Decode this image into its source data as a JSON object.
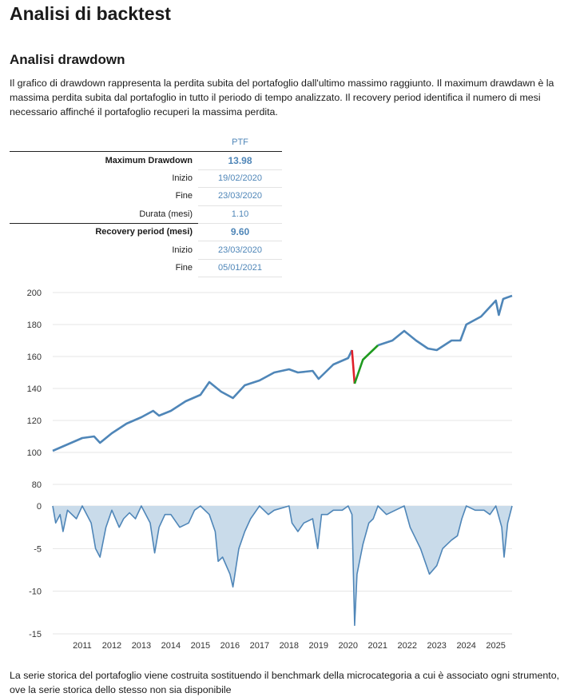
{
  "page_title": "Analisi di backtest",
  "section_title": "Analisi drawdown",
  "intro": "Il grafico di drawdown rappresenta la perdita subita del portafoglio dall'ultimo massimo raggiunto. Il maximum drawdawn è la massima perdita subita dal portafoglio in tutto il periodo di tempo analizzato. Il recovery period identifica il numero di mesi necessario affinché il portafoglio recuperi la massima perdita.",
  "table": {
    "column_header": "PTF",
    "rows": [
      {
        "label": "Maximum Drawdown",
        "value": "13.98"
      },
      {
        "label": "Inizio",
        "value": "19/02/2020"
      },
      {
        "label": "Fine",
        "value": "23/03/2020"
      },
      {
        "label": "Durata (mesi)",
        "value": "1.10"
      },
      {
        "label": "Recovery period (mesi)",
        "value": "9.60"
      },
      {
        "label": "Inizio",
        "value": "23/03/2020"
      },
      {
        "label": "Fine",
        "value": "05/01/2021"
      }
    ]
  },
  "colors": {
    "series": "#4f86b8",
    "drawdown_fill": "#c9dbea",
    "drawdown_phase": "#e0202a",
    "recovery_phase": "#1f9a1f",
    "grid": "#e6e6e6"
  },
  "chart_data": [
    {
      "type": "line",
      "xlim": [
        2010.0,
        2025.55
      ],
      "ylim": [
        80,
        200
      ],
      "yticks": [
        "80",
        "100",
        "120",
        "140",
        "160",
        "180",
        "200"
      ],
      "grid": true,
      "highlight_segments": [
        {
          "phase": "drawdown",
          "from": 2020.13,
          "to": 2020.22
        },
        {
          "phase": "recovery",
          "from": 2020.22,
          "to": 2021.01
        }
      ],
      "x": [
        2010.0,
        2010.5,
        2011.0,
        2011.4,
        2011.6,
        2012.0,
        2012.5,
        2013.0,
        2013.4,
        2013.6,
        2014.0,
        2014.5,
        2015.0,
        2015.3,
        2015.7,
        2016.1,
        2016.5,
        2017.0,
        2017.5,
        2018.0,
        2018.3,
        2018.8,
        2019.0,
        2019.5,
        2020.0,
        2020.13,
        2020.22,
        2020.5,
        2021.01,
        2021.5,
        2021.9,
        2022.3,
        2022.7,
        2023.0,
        2023.5,
        2023.8,
        2024.0,
        2024.5,
        2025.0,
        2025.1,
        2025.25,
        2025.55
      ],
      "y": [
        101,
        105,
        109,
        110,
        106,
        112,
        118,
        122,
        126,
        123,
        126,
        132,
        136,
        144,
        138,
        134,
        142,
        145,
        150,
        152,
        150,
        151,
        146,
        155,
        159,
        164,
        143,
        158,
        167,
        170,
        176,
        170,
        165,
        164,
        170,
        170,
        180,
        185,
        195,
        186,
        196,
        198
      ]
    },
    {
      "type": "area",
      "xlim": [
        2010.0,
        2025.55
      ],
      "ylim": [
        -15,
        0
      ],
      "yticks": [
        "0",
        "-5",
        "-10",
        "-15"
      ],
      "xticks": [
        "2011",
        "2012",
        "2013",
        "2014",
        "2015",
        "2016",
        "2017",
        "2018",
        "2019",
        "2020",
        "2021",
        "2022",
        "2023",
        "2024",
        "2025"
      ],
      "grid": true,
      "x": [
        2010.0,
        2010.1,
        2010.25,
        2010.35,
        2010.5,
        2010.8,
        2011.0,
        2011.3,
        2011.45,
        2011.6,
        2011.8,
        2012.0,
        2012.25,
        2012.4,
        2012.6,
        2012.8,
        2013.0,
        2013.3,
        2013.45,
        2013.6,
        2013.8,
        2014.0,
        2014.3,
        2014.6,
        2014.8,
        2015.0,
        2015.3,
        2015.5,
        2015.6,
        2015.75,
        2016.0,
        2016.1,
        2016.3,
        2016.5,
        2016.7,
        2016.9,
        2017.0,
        2017.3,
        2017.5,
        2017.7,
        2018.0,
        2018.1,
        2018.3,
        2018.5,
        2018.8,
        2018.97,
        2019.1,
        2019.3,
        2019.5,
        2019.8,
        2020.0,
        2020.13,
        2020.22,
        2020.3,
        2020.5,
        2020.7,
        2020.85,
        2021.01,
        2021.3,
        2021.6,
        2021.9,
        2022.1,
        2022.45,
        2022.75,
        2023.0,
        2023.2,
        2023.5,
        2023.7,
        2023.85,
        2024.0,
        2024.3,
        2024.6,
        2024.8,
        2025.0,
        2025.2,
        2025.28,
        2025.4,
        2025.55
      ],
      "y": [
        0,
        -2.0,
        -1.0,
        -3.0,
        -0.5,
        -1.5,
        0,
        -2.0,
        -5.0,
        -6.0,
        -2.5,
        -0.5,
        -2.5,
        -1.5,
        -0.8,
        -1.5,
        0,
        -2.0,
        -5.5,
        -2.5,
        -1.0,
        -1.0,
        -2.5,
        -2.0,
        -0.5,
        0,
        -1.0,
        -3.0,
        -6.5,
        -6.0,
        -8.0,
        -9.5,
        -5.0,
        -3.0,
        -1.5,
        -0.5,
        0,
        -1.0,
        -0.5,
        -0.3,
        0,
        -2.0,
        -3.0,
        -2.0,
        -1.5,
        -5.0,
        -1.0,
        -1.0,
        -0.5,
        -0.5,
        0,
        -1.0,
        -14.0,
        -8.0,
        -4.5,
        -2.0,
        -1.5,
        0,
        -1.0,
        -0.5,
        0,
        -2.5,
        -5.0,
        -8.0,
        -7.0,
        -5.0,
        -4.0,
        -3.5,
        -1.5,
        0,
        -0.5,
        -0.5,
        -1.0,
        0,
        -2.5,
        -6.0,
        -2.0,
        0
      ]
    }
  ],
  "footnote": "La serie storica del portafoglio viene costruita sostituendo il benchmark della microcategoria a cui è associato ogni strumento, ove la serie storica dello stesso non sia disponibile"
}
